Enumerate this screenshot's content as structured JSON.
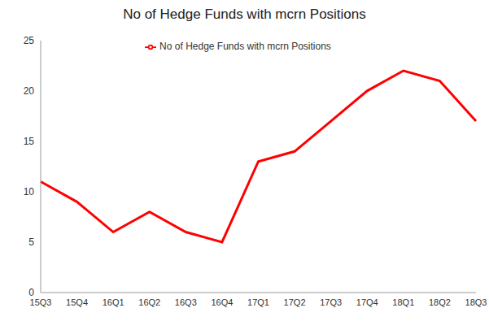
{
  "chart_data": {
    "type": "line",
    "title": "No of Hedge Funds with mcrn Positions",
    "categories": [
      "15Q3",
      "15Q4",
      "16Q1",
      "16Q2",
      "16Q3",
      "16Q4",
      "17Q1",
      "17Q2",
      "17Q3",
      "17Q4",
      "18Q1",
      "18Q2",
      "18Q3"
    ],
    "series": [
      {
        "name": "No of Hedge Funds with mcrn Positions",
        "color": "#ff0000",
        "values": [
          11,
          9,
          6,
          8,
          6,
          5,
          13,
          14,
          17,
          20,
          22,
          21,
          17
        ]
      }
    ],
    "ylim": [
      0,
      25
    ],
    "yticks": [
      0,
      5,
      10,
      15,
      20,
      25
    ],
    "grid": false,
    "legend": "top"
  }
}
